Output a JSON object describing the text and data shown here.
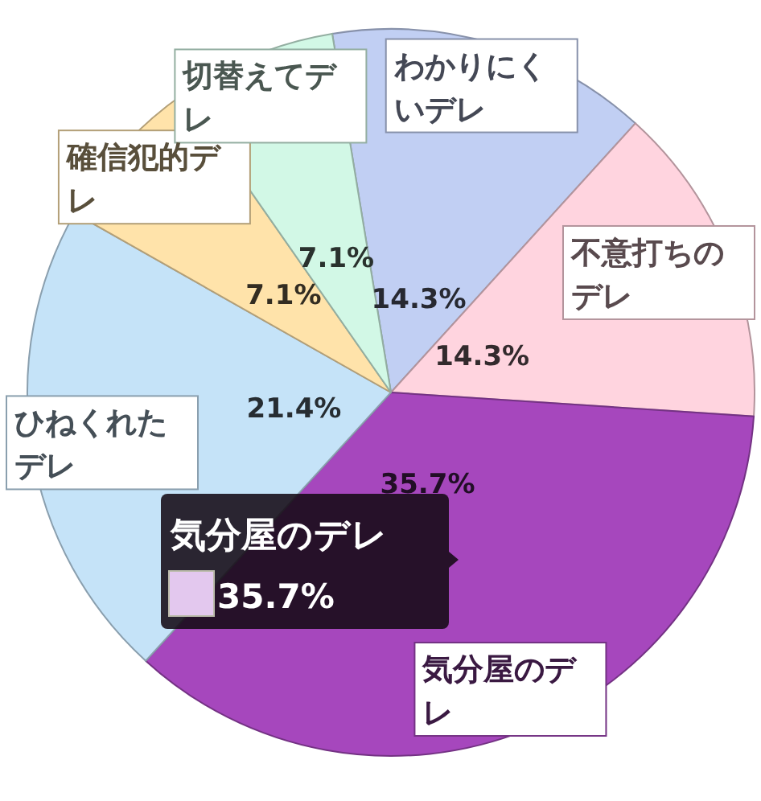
{
  "chart_data": {
    "type": "pie",
    "categories": [
      "わかりにくいデレ",
      "不意打ちのデレ",
      "気分屋のデレ",
      "ひねくれたデレ",
      "確信犯的デレ",
      "切替えてデレ"
    ],
    "values": [
      14.3,
      14.3,
      35.7,
      21.4,
      7.1,
      7.1
    ],
    "colors": [
      "#c1cff3",
      "#ffd4df",
      "#a647bd",
      "#c5e3f8",
      "#ffe3aa",
      "#d2f8e6"
    ],
    "value_labels": [
      "14.3%",
      "14.3%",
      "35.7%",
      "21.4%",
      "7.1%",
      "7.1%"
    ],
    "annotations": [
      "気分屋のデレ",
      "35.7%"
    ]
  }
}
